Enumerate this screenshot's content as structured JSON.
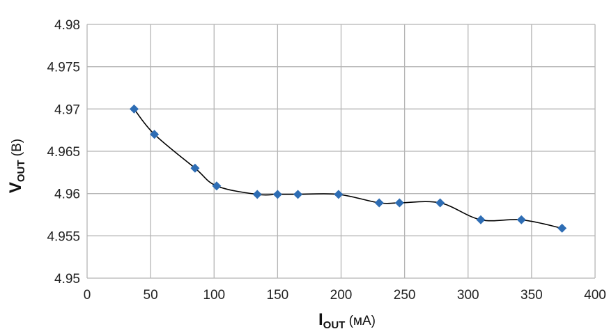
{
  "chart_data": {
    "type": "line",
    "title": "",
    "xlabel": {
      "main": "I",
      "sub": "OUT",
      "unit": " (мА)"
    },
    "ylabel": {
      "main": "V",
      "sub": "OUT",
      "unit": " (В)"
    },
    "xlim": [
      0,
      400
    ],
    "ylim": [
      4.95,
      4.98
    ],
    "x_ticks": [
      "0",
      "50",
      "100",
      "150",
      "200",
      "250",
      "300",
      "350",
      "400"
    ],
    "y_ticks": [
      "4.95",
      "4.955",
      "4.96",
      "4.965",
      "4.97",
      "4.975",
      "4.98"
    ],
    "grid": true,
    "legend": "none",
    "series": [
      {
        "marker": "diamond",
        "color": "#2e6db4",
        "line_color": "#000000",
        "x": [
          37,
          53,
          85,
          102,
          134,
          150,
          166,
          198,
          230,
          246,
          278,
          310,
          342,
          374
        ],
        "y": [
          4.97,
          4.967,
          4.963,
          4.9609,
          4.9599,
          4.9599,
          4.9599,
          4.9599,
          4.9589,
          4.9589,
          4.9589,
          4.9569,
          4.9569,
          4.9559
        ]
      }
    ]
  }
}
